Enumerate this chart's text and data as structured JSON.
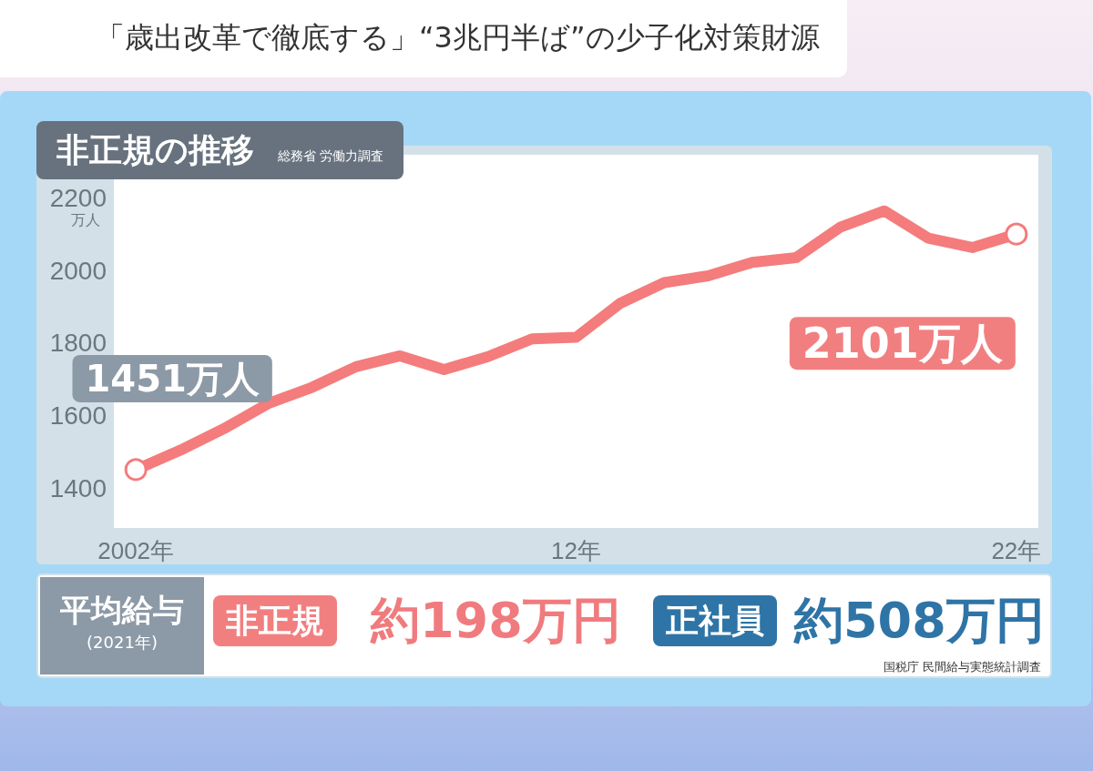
{
  "chart_data": {
    "type": "line",
    "title": "非正規の推移",
    "ylabel": "万人",
    "categories": [
      "2002年",
      null,
      null,
      null,
      null,
      null,
      null,
      null,
      null,
      null,
      "12年",
      null,
      null,
      null,
      null,
      null,
      null,
      null,
      null,
      null,
      "22年"
    ],
    "series": [
      {
        "color": "#f47c7c",
        "values": [
          1451,
          1504,
          1564,
          1633,
          1678,
          1735,
          1765,
          1727,
          1763,
          1812,
          1816,
          1910,
          1967,
          1986,
          2023,
          2036,
          2120,
          2165,
          2090,
          2064,
          2101
        ]
      }
    ],
    "ylim": [
      1290,
      2320
    ],
    "yticks": [
      1400,
      1600,
      1800,
      2000,
      2200
    ],
    "grid": false,
    "line_style": "solid",
    "annotations": [
      {
        "text": "1451万人",
        "x": "2002年",
        "y": 1451
      },
      {
        "text": "2101万人",
        "x": "22年",
        "y": 2101
      },
      "「歳出改革で徹底する」“3兆円半ば”の少子化対策財源",
      "総務省 労働力調査",
      "平均給与",
      "(2021年)",
      "非正規",
      "約198万円",
      "正社員",
      "約508万円",
      "国税庁 民間給与実態統計調査"
    ]
  }
}
